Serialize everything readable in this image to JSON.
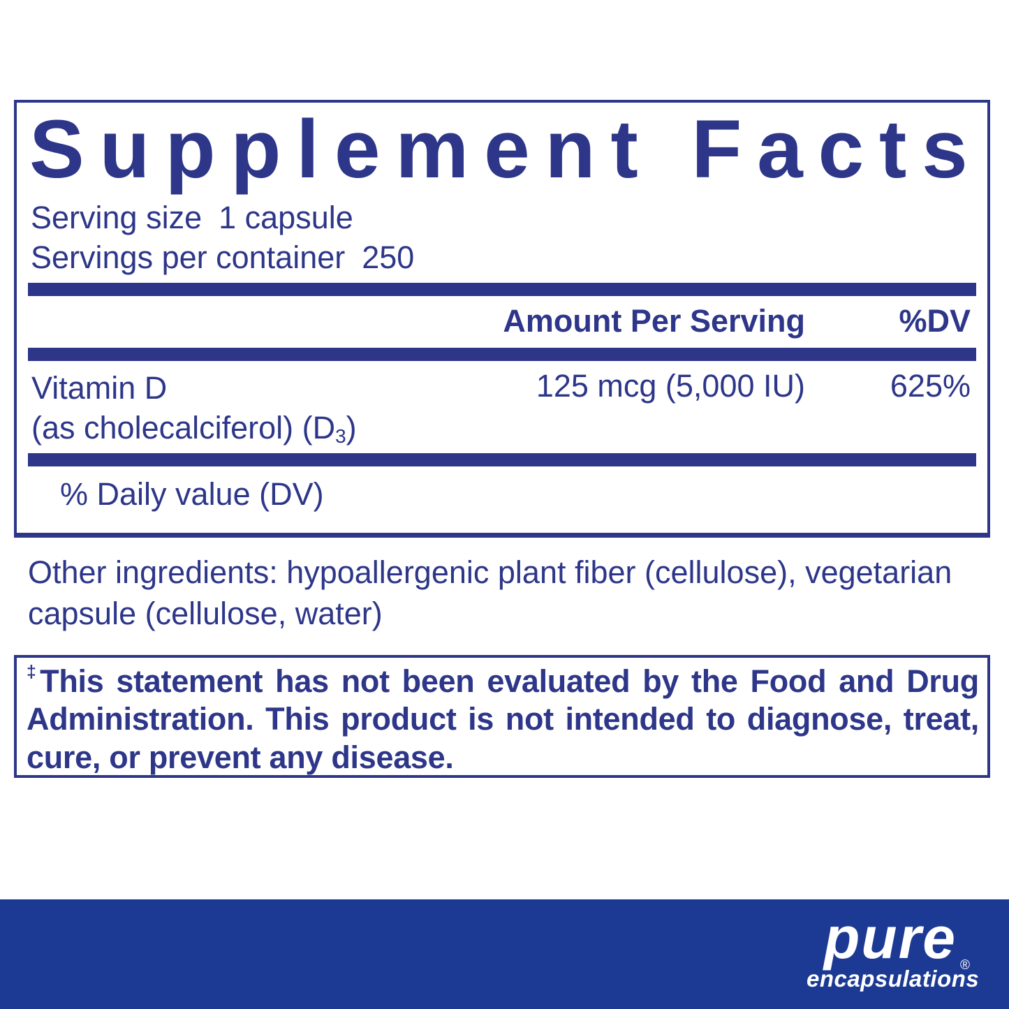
{
  "panel": {
    "title": "Supplement Facts",
    "serving_size_label": "Serving size",
    "serving_size_value": "1 capsule",
    "servings_per_container_label": "Servings per container",
    "servings_per_container_value": "250",
    "columns": {
      "amount": "Amount Per Serving",
      "dv": "%DV"
    },
    "rows": [
      {
        "name_line1": "Vitamin D",
        "name_line2_pre": "(as cholecalciferol) (D",
        "name_line2_sub": "3",
        "name_line2_post": ")",
        "amount": "125 mcg (5,000 IU)",
        "dv": "625%"
      }
    ],
    "footnote": "% Daily value (DV)"
  },
  "other_ingredients": {
    "text": "Other ingredients: hypoallergenic plant fiber (cellulose), vegetarian capsule (cellulose, water)"
  },
  "disclaimer": {
    "dagger": "‡",
    "text": "This statement has not been evaluated by the Food and Drug Administration. This product is not intended to diagnose, treat, cure, or prevent any disease."
  },
  "brand": {
    "name": "pure",
    "subname": "encapsulations",
    "registered": "®"
  },
  "colors": {
    "navy": "#2d3689",
    "footer_blue": "#1c3a94"
  }
}
